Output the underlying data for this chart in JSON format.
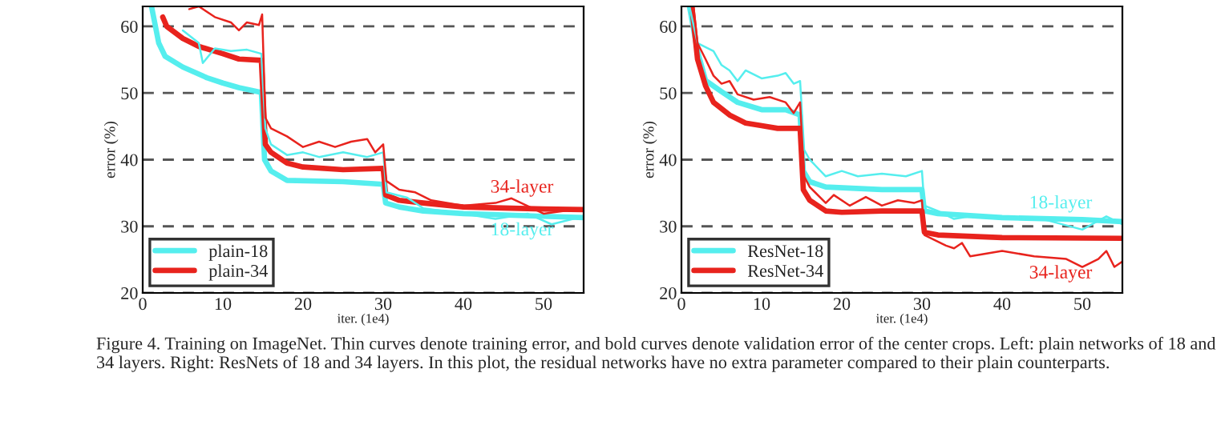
{
  "chart_data": [
    {
      "type": "line",
      "xlabel": "iter. (1e4)",
      "ylabel": "error (%)",
      "xlim": [
        0,
        55
      ],
      "ylim": [
        20,
        63
      ],
      "xticks": [
        0,
        10,
        20,
        30,
        40,
        50
      ],
      "yticks": [
        20,
        30,
        40,
        50,
        60
      ],
      "grid": "y",
      "legend": "bottom left",
      "marker": "none",
      "line_style": "solid",
      "series": [
        {
          "name": "plain-18",
          "color": "#55eeee",
          "x": [
            1.1,
            2,
            2.8,
            5,
            8,
            10,
            12,
            14.8,
            15.2,
            16,
            18,
            25,
            30,
            30.3,
            32,
            35,
            40,
            50,
            55
          ],
          "values": [
            63,
            57.5,
            55.5,
            53.9,
            52.3,
            51.5,
            50.8,
            50.1,
            40,
            38.3,
            36.9,
            36.7,
            36.3,
            33.5,
            32.9,
            32.3,
            31.9,
            31.5,
            31.3
          ]
        },
        {
          "name": "plain-34",
          "color": "#e8231d",
          "x": [
            2.5,
            3,
            5,
            7,
            10,
            12,
            14.8,
            15.3,
            16,
            18,
            20,
            25,
            30,
            30.3,
            32,
            35,
            40,
            50,
            55
          ],
          "values": [
            61.4,
            60,
            58.2,
            57,
            55.9,
            55.1,
            54.9,
            42.3,
            41.1,
            39.5,
            38.9,
            38.5,
            38.7,
            34.7,
            33.9,
            33.5,
            32.9,
            32.6,
            32.5
          ]
        },
        {
          "color": "#55eeee",
          "x": [
            5,
            7,
            7.5,
            9,
            11,
            13,
            14.8,
            15.3,
            16,
            18,
            20,
            22,
            25,
            28,
            30,
            30.4,
            33,
            35,
            40,
            44,
            48,
            51,
            55
          ],
          "values": [
            59.4,
            57.5,
            54.5,
            56.7,
            56.3,
            56.5,
            55.9,
            44.7,
            42.3,
            40.7,
            41.1,
            40.4,
            41.1,
            40.4,
            41.1,
            35.1,
            34.3,
            32.7,
            31.9,
            31.1,
            31.9,
            30.3,
            31.5
          ]
        },
        {
          "color": "#e8231d",
          "x": [
            5.8,
            7,
            9,
            11,
            12,
            13,
            14.5,
            14.9,
            15.3,
            16,
            18,
            20,
            22,
            24,
            26,
            28,
            29,
            30,
            30.4,
            32,
            34,
            36,
            40,
            44,
            46,
            50,
            55
          ],
          "values": [
            62.6,
            63,
            61.4,
            60.6,
            59.4,
            60.6,
            60.2,
            61.8,
            46.3,
            44.7,
            43.5,
            41.9,
            42.7,
            41.9,
            42.7,
            43.1,
            41.1,
            42.3,
            36.8,
            35.5,
            35.1,
            33.9,
            33.1,
            33.5,
            34.2,
            31.9,
            32.7
          ]
        }
      ],
      "annotations": [
        "18-layer",
        "34-layer",
        "Figure 4. Training on ImageNet. Thin curves denote training error, and bold curves denote validation error of the center crops. Left: plain networks of 18 and 34 layers. Right: ResNets of 18 and 34 layers. In this plot, the residual networks have no extra parameter compared to their plain counterparts."
      ]
    },
    {
      "type": "line",
      "xlabel": "iter. (1e4)",
      "ylabel": "error (%)",
      "xlim": [
        0,
        55
      ],
      "ylim": [
        20,
        63
      ],
      "xticks": [
        0,
        10,
        20,
        30,
        40,
        50
      ],
      "yticks": [
        20,
        30,
        40,
        50,
        60
      ],
      "grid": "y",
      "legend": "bottom left",
      "marker": "none",
      "line_style": "solid",
      "series": [
        {
          "name": "ResNet-18",
          "color": "#55eeee",
          "x": [
            1,
            2,
            3,
            5,
            7,
            10,
            13,
            14.8,
            15.2,
            16,
            18,
            25,
            30,
            30.3,
            32,
            40,
            50,
            55
          ],
          "values": [
            63,
            56.3,
            51.9,
            50.2,
            48.6,
            47.5,
            47.5,
            46.7,
            38.3,
            36.7,
            35.9,
            35.5,
            35.5,
            32.3,
            31.9,
            31.3,
            31.0,
            30.7
          ]
        },
        {
          "name": "ResNet-34",
          "color": "#e8231d",
          "x": [
            1.3,
            2,
            3,
            4,
            6,
            8,
            10,
            12,
            14.8,
            15.2,
            16,
            18,
            20,
            25,
            30,
            30.3,
            32,
            40,
            55
          ],
          "values": [
            63,
            55.1,
            51.1,
            48.6,
            46.7,
            45.5,
            45.1,
            44.7,
            44.7,
            35.5,
            33.9,
            32.3,
            32.1,
            32.3,
            32.3,
            29.1,
            28.7,
            28.3,
            28.2
          ]
        },
        {
          "color": "#55eeee",
          "x": [
            1,
            2,
            4,
            5,
            6,
            7,
            8,
            10,
            12,
            13,
            14,
            14.8,
            15.3,
            16,
            18,
            20,
            22,
            25,
            28,
            30,
            30.3,
            32,
            34,
            36,
            40,
            45,
            50,
            53,
            55
          ],
          "values": [
            63,
            57.5,
            56.3,
            54.2,
            53.4,
            51.8,
            53.4,
            52.2,
            52.6,
            53,
            51.4,
            51.8,
            41.5,
            40,
            37.5,
            38.3,
            37.5,
            37.9,
            37.5,
            38.3,
            33.1,
            32.3,
            31.1,
            31.5,
            31.5,
            31.1,
            29.5,
            31.5,
            30.3
          ]
        },
        {
          "color": "#e8231d",
          "x": [
            1.5,
            2,
            3,
            4,
            5,
            6,
            7,
            9,
            11,
            13,
            14,
            14.8,
            15.3,
            16,
            18,
            19,
            21,
            23,
            25,
            27,
            29,
            30,
            30.3,
            33,
            34,
            35,
            36,
            40,
            44,
            48,
            50,
            52,
            53,
            54,
            55
          ],
          "values": [
            63,
            57.5,
            55.1,
            52.6,
            51.4,
            51.8,
            49.8,
            49,
            49.4,
            48.6,
            47,
            48.6,
            37.5,
            35.9,
            33.5,
            34.7,
            33.1,
            34.4,
            33.1,
            33.9,
            33.5,
            33.9,
            28.7,
            27.1,
            26.7,
            27.5,
            25.5,
            26.3,
            25.5,
            25.1,
            23.9,
            25.1,
            26.3,
            23.9,
            24.7
          ]
        }
      ],
      "annotations": [
        "18-layer",
        "34-layer"
      ]
    }
  ]
}
